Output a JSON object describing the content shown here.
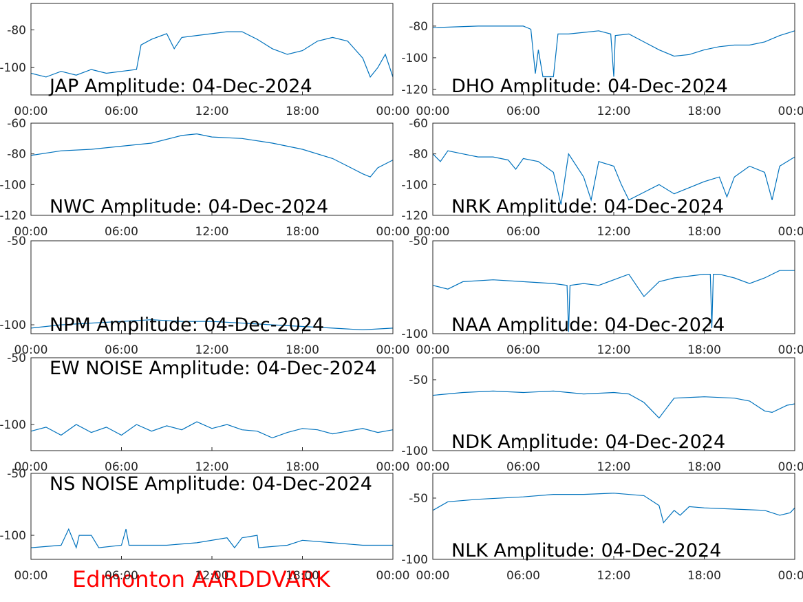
{
  "charts": [
    {
      "type": "line",
      "title": "JAP Amplitude: 04-Dec-2024",
      "color": "#0072bd",
      "x": [
        0,
        1,
        2,
        3,
        4,
        5,
        6,
        7,
        7.3,
        8,
        9,
        9.5,
        10,
        11,
        12,
        13,
        14,
        15,
        16,
        17,
        18,
        19,
        20,
        21,
        22,
        22.5,
        23,
        23.5,
        24
      ],
      "values": [
        -103,
        -105,
        -102,
        -104,
        -101,
        -103,
        -102,
        -101,
        -88,
        -85,
        -82,
        -90,
        -84,
        -83,
        -82,
        -81,
        -81,
        -85,
        -90,
        -93,
        -91,
        -86,
        -84,
        -86,
        -95,
        -105,
        -100,
        -93,
        -105
      ],
      "xlim": [
        0,
        24
      ],
      "ylim": [
        -114.5,
        -66
      ],
      "yticks": [
        -80,
        -100
      ],
      "xticks": [
        {
          "value": 0,
          "label": "00:00"
        },
        {
          "value": 6,
          "label": "06:00"
        },
        {
          "value": 12,
          "label": "12:00"
        },
        {
          "value": 18,
          "label": "18:00"
        },
        {
          "value": 24,
          "label": "00:00"
        }
      ]
    },
    {
      "type": "line",
      "title": "DHO Amplitude: 04-Dec-2024",
      "color": "#0072bd",
      "x": [
        0,
        3,
        6,
        6.5,
        6.8,
        7,
        7.3,
        8,
        8.3,
        9,
        10,
        11,
        11.8,
        12,
        12.1,
        13,
        14,
        15,
        16,
        17,
        18,
        19,
        20,
        21,
        22,
        23,
        24
      ],
      "values": [
        -81,
        -80,
        -80,
        -82,
        -110,
        -95,
        -112,
        -112,
        -85,
        -85,
        -84,
        -83,
        -85,
        -112,
        -86,
        -85,
        -90,
        -95,
        -99,
        -98,
        -95,
        -93,
        -92,
        -92,
        -90,
        -86,
        -83
      ],
      "xlim": [
        0,
        24
      ],
      "ylim": [
        -123.5,
        -65.7
      ],
      "yticks": [
        -80,
        -100,
        -120
      ],
      "xticks": [
        {
          "value": 0,
          "label": "00:00"
        },
        {
          "value": 6,
          "label": "06:00"
        },
        {
          "value": 12,
          "label": "12:00"
        },
        {
          "value": 18,
          "label": "18:00"
        },
        {
          "value": 24,
          "label": "00:00"
        }
      ]
    },
    {
      "type": "line",
      "title": "NWC Amplitude: 04-Dec-2024",
      "color": "#0072bd",
      "x": [
        0,
        2,
        4,
        6,
        8,
        10,
        11,
        12,
        14,
        16,
        18,
        20,
        21,
        22,
        22.5,
        23,
        24
      ],
      "values": [
        -81,
        -78,
        -77,
        -75,
        -73,
        -68,
        -67,
        -69,
        -70,
        -73,
        -77,
        -83,
        -88,
        -93,
        -95,
        -89,
        -84
      ],
      "xlim": [
        0,
        24
      ],
      "ylim": [
        -120,
        -60
      ],
      "yticks": [
        -60,
        -80,
        -100,
        -120
      ],
      "xticks": [
        {
          "value": 0,
          "label": "00:00"
        },
        {
          "value": 6,
          "label": "06:00"
        },
        {
          "value": 12,
          "label": "12:00"
        },
        {
          "value": 18,
          "label": "18:00"
        },
        {
          "value": 24,
          "label": "00:00"
        }
      ]
    },
    {
      "type": "line",
      "title": "NRK Amplitude: 04-Dec-2024",
      "color": "#0072bd",
      "x": [
        0,
        0.5,
        1,
        2,
        3,
        4,
        5,
        5.5,
        6,
        7,
        8,
        8.5,
        9,
        10,
        10.5,
        11,
        12,
        12.5,
        13,
        14,
        15,
        16,
        17,
        18,
        19,
        19.5,
        20,
        21,
        22,
        22.5,
        23,
        24
      ],
      "values": [
        -80,
        -85,
        -78,
        -80,
        -82,
        -82,
        -84,
        -90,
        -83,
        -85,
        -92,
        -113,
        -80,
        -95,
        -110,
        -85,
        -88,
        -100,
        -110,
        -105,
        -100,
        -106,
        -102,
        -98,
        -95,
        -108,
        -95,
        -88,
        -92,
        -110,
        -88,
        -82
      ],
      "xlim": [
        0,
        24
      ],
      "ylim": [
        -120,
        -60
      ],
      "yticks": [
        -60,
        -80,
        -100,
        -120
      ],
      "xticks": [
        {
          "value": 0,
          "label": "00:00"
        },
        {
          "value": 6,
          "label": "06:00"
        },
        {
          "value": 12,
          "label": "12:00"
        },
        {
          "value": 18,
          "label": "18:00"
        },
        {
          "value": 24,
          "label": "00:00"
        }
      ]
    },
    {
      "type": "line",
      "title": "NPM Amplitude: 04-Dec-2024",
      "color": "#0072bd",
      "x": [
        0,
        2,
        4,
        6,
        8,
        10,
        12,
        14,
        16,
        18,
        20,
        22,
        24
      ],
      "values": [
        -102,
        -100,
        -99,
        -98,
        -97,
        -98,
        -98,
        -99,
        -100,
        -101,
        -102,
        -103,
        -102
      ],
      "xlim": [
        0,
        24
      ],
      "ylim": [
        -105.3,
        -50
      ],
      "yticks": [
        -50,
        -100
      ],
      "xticks": [
        {
          "value": 0,
          "label": "00:00"
        },
        {
          "value": 6,
          "label": "06:00"
        },
        {
          "value": 12,
          "label": "12:00"
        },
        {
          "value": 18,
          "label": "18:00"
        },
        {
          "value": 24,
          "label": "00:00"
        }
      ]
    },
    {
      "type": "line",
      "title": "NAA Amplitude: 04-Dec-2024",
      "color": "#0072bd",
      "x": [
        0,
        1,
        2,
        4,
        6,
        8,
        8.9,
        9,
        9.1,
        10,
        11,
        12,
        13,
        14,
        15,
        16,
        18,
        18.4,
        18.5,
        18.6,
        19,
        20,
        21,
        22,
        23,
        24
      ],
      "values": [
        -74,
        -76,
        -72,
        -71,
        -72,
        -73,
        -74,
        -99,
        -74,
        -73,
        -74,
        -71,
        -68,
        -80,
        -72,
        -70,
        -68,
        -68,
        -97,
        -68,
        -68,
        -70,
        -73,
        -70,
        -66,
        -66
      ],
      "xlim": [
        0,
        24
      ],
      "ylim": [
        -100,
        -50
      ],
      "yticks": [
        -50,
        -100
      ],
      "xticks": [
        {
          "value": 0,
          "label": "00:00"
        },
        {
          "value": 6,
          "label": "06:00"
        },
        {
          "value": 12,
          "label": "12:00"
        },
        {
          "value": 18,
          "label": "18:00"
        },
        {
          "value": 24,
          "label": "00:00"
        }
      ]
    },
    {
      "type": "line",
      "title": "EW NOISE Amplitude: 04-Dec-2024",
      "color": "#0072bd",
      "x": [
        0,
        1,
        2,
        3,
        4,
        5,
        6,
        7,
        8,
        9,
        10,
        11,
        12,
        13,
        14,
        15,
        16,
        17,
        18,
        19,
        20,
        21,
        22,
        23,
        24
      ],
      "values": [
        -105,
        -102,
        -108,
        -100,
        -106,
        -102,
        -108,
        -100,
        -105,
        -101,
        -104,
        -98,
        -103,
        -100,
        -104,
        -105,
        -110,
        -106,
        -103,
        -104,
        -107,
        -105,
        -103,
        -106,
        -104
      ],
      "xlim": [
        0,
        24
      ],
      "ylim": [
        -119.6,
        -50
      ],
      "yticks": [
        -50,
        -100
      ],
      "xticks": [
        {
          "value": 0,
          "label": "00:00"
        },
        {
          "value": 6,
          "label": "06:00"
        },
        {
          "value": 12,
          "label": "12:00"
        },
        {
          "value": 18,
          "label": "18:00"
        },
        {
          "value": 24,
          "label": "00:00"
        }
      ]
    },
    {
      "type": "line",
      "title": "NDK Amplitude: 04-Dec-2024",
      "color": "#0072bd",
      "x": [
        0,
        2,
        4,
        6,
        8,
        10,
        12,
        13,
        14,
        15,
        15.5,
        16,
        18,
        20,
        21,
        22,
        22.5,
        23.5,
        24
      ],
      "values": [
        -61,
        -59,
        -58,
        -59,
        -58,
        -60,
        -59,
        -60,
        -66,
        -77,
        -70,
        -63,
        -62,
        -63,
        -65,
        -72,
        -73,
        -68,
        -67
      ],
      "xlim": [
        0,
        24
      ],
      "ylim": [
        -100,
        -34.5
      ],
      "yticks": [
        -50,
        -100
      ],
      "xticks": [
        {
          "value": 0,
          "label": "00:00"
        },
        {
          "value": 6,
          "label": "06:00"
        },
        {
          "value": 12,
          "label": "12:00"
        },
        {
          "value": 18,
          "label": "18:00"
        },
        {
          "value": 24,
          "label": "00:00"
        }
      ]
    },
    {
      "type": "line",
      "title": "NS NOISE Amplitude: 04-Dec-2024",
      "color": "#0072bd",
      "x": [
        0,
        2,
        2.5,
        3,
        3.2,
        4,
        4.5,
        6,
        6.3,
        6.5,
        9,
        11,
        13,
        13.5,
        14,
        15,
        15.1,
        17,
        18,
        20,
        22,
        24
      ],
      "values": [
        -110,
        -108,
        -95,
        -110,
        -100,
        -100,
        -110,
        -108,
        -95,
        -108,
        -108,
        -106,
        -102,
        -110,
        -102,
        -100,
        -110,
        -108,
        -104,
        -106,
        -108,
        -108
      ],
      "xlim": [
        0,
        24
      ],
      "ylim": [
        -119.4,
        -50
      ],
      "yticks": [
        -50,
        -100
      ],
      "xticks": [
        {
          "value": 0,
          "label": "00:00"
        },
        {
          "value": 6,
          "label": "06:00"
        },
        {
          "value": 12,
          "label": "12:00"
        },
        {
          "value": 18,
          "label": "18:00"
        },
        {
          "value": 24,
          "label": "00:00"
        }
      ]
    },
    {
      "type": "line",
      "title": "NLK Amplitude: 04-Dec-2024",
      "color": "#0072bd",
      "x": [
        0,
        1,
        3,
        6,
        8,
        10,
        12,
        14,
        15,
        15.3,
        16,
        16.4,
        17,
        18,
        20,
        22,
        23,
        23.7,
        24
      ],
      "values": [
        -60,
        -53,
        -51,
        -49,
        -47,
        -47,
        -46,
        -48,
        -56,
        -70,
        -60,
        -64,
        -57,
        -58,
        -59,
        -60,
        -64,
        -62,
        -58
      ],
      "xlim": [
        0,
        24
      ],
      "ylim": [
        -100,
        -29.8
      ],
      "yticks": [
        -50,
        -100
      ],
      "xticks": [
        {
          "value": 0,
          "label": "00:00"
        },
        {
          "value": 6,
          "label": "06:00"
        },
        {
          "value": 12,
          "label": "12:00"
        },
        {
          "value": 18,
          "label": "18:00"
        },
        {
          "value": 24,
          "label": "00:00"
        }
      ]
    }
  ],
  "footer": "Edmonton AARDDVARK"
}
